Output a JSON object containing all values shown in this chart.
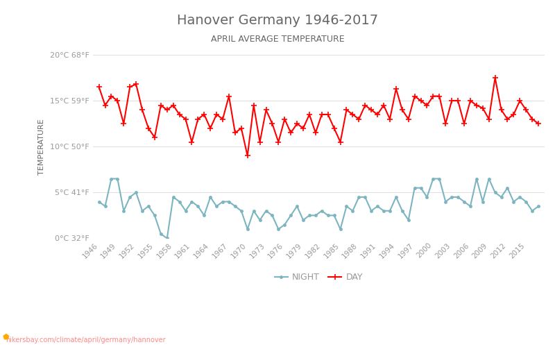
{
  "title": "Hanover Germany 1946-2017",
  "subtitle": "APRIL AVERAGE TEMPERATURE",
  "ylabel": "TEMPERATURE",
  "url": "hikersbay.com/climate/april/germany/hannover",
  "years": [
    1946,
    1947,
    1948,
    1949,
    1950,
    1951,
    1952,
    1953,
    1954,
    1955,
    1956,
    1957,
    1958,
    1959,
    1960,
    1961,
    1962,
    1963,
    1964,
    1965,
    1966,
    1967,
    1968,
    1969,
    1970,
    1971,
    1972,
    1973,
    1974,
    1975,
    1976,
    1977,
    1978,
    1979,
    1980,
    1981,
    1982,
    1983,
    1984,
    1985,
    1986,
    1987,
    1988,
    1989,
    1990,
    1991,
    1992,
    1993,
    1994,
    1995,
    1996,
    1997,
    1998,
    1999,
    2000,
    2001,
    2002,
    2003,
    2004,
    2005,
    2006,
    2007,
    2008,
    2009,
    2010,
    2011,
    2012,
    2013,
    2014,
    2015,
    2016,
    2017
  ],
  "day_temps": [
    16.5,
    14.5,
    15.5,
    15.0,
    12.5,
    16.5,
    16.8,
    14.0,
    12.0,
    11.0,
    14.5,
    14.0,
    14.5,
    13.5,
    13.0,
    10.5,
    13.0,
    13.5,
    12.0,
    13.5,
    13.0,
    15.5,
    11.5,
    12.0,
    9.0,
    14.5,
    10.5,
    14.0,
    12.5,
    10.5,
    13.0,
    11.5,
    12.5,
    12.0,
    13.5,
    11.5,
    13.5,
    13.5,
    12.0,
    10.5,
    14.0,
    13.5,
    13.0,
    14.5,
    14.0,
    13.5,
    14.5,
    13.0,
    16.3,
    14.0,
    13.0,
    15.5,
    15.0,
    14.5,
    15.5,
    15.5,
    12.5,
    15.0,
    15.0,
    12.5,
    15.0,
    14.5,
    14.2,
    13.0,
    17.5,
    14.0,
    13.0,
    13.5,
    15.0,
    14.0,
    13.0,
    12.5
  ],
  "night_temps": [
    4.0,
    3.5,
    6.5,
    6.5,
    3.0,
    4.5,
    5.0,
    3.0,
    3.5,
    2.5,
    0.5,
    0.0,
    4.5,
    4.0,
    3.0,
    4.0,
    3.5,
    2.5,
    4.5,
    3.5,
    4.0,
    4.0,
    3.5,
    3.0,
    1.0,
    3.0,
    2.0,
    3.0,
    2.5,
    1.0,
    1.5,
    2.5,
    3.5,
    2.0,
    2.5,
    2.5,
    3.0,
    2.5,
    2.5,
    1.0,
    3.5,
    3.0,
    4.5,
    4.5,
    3.0,
    3.5,
    3.0,
    3.0,
    4.5,
    3.0,
    2.0,
    5.5,
    5.5,
    4.5,
    6.5,
    6.5,
    4.0,
    4.5,
    4.5,
    4.0,
    3.5,
    6.5,
    4.0,
    6.5,
    5.0,
    4.5,
    5.5,
    4.0,
    4.5,
    4.0,
    3.0,
    3.5
  ],
  "day_color": "#ff0000",
  "night_color": "#7cb5c0",
  "title_color": "#666666",
  "subtitle_color": "#666666",
  "ylabel_color": "#666666",
  "tick_color": "#999999",
  "grid_color": "#e0e0e0",
  "background_color": "#ffffff",
  "ylim": [
    0,
    20
  ],
  "yticks_c": [
    0,
    5,
    10,
    15,
    20
  ],
  "ytick_labels": [
    "0°C 32°F",
    "5°C 41°F",
    "10°C 50°F",
    "15°C 59°F",
    "20°C 68°F"
  ],
  "xtick_years": [
    1946,
    1949,
    1952,
    1955,
    1958,
    1961,
    1964,
    1967,
    1970,
    1973,
    1976,
    1979,
    1982,
    1985,
    1988,
    1991,
    1994,
    1997,
    2000,
    2003,
    2006,
    2009,
    2012,
    2015
  ],
  "marker_size": 3.5,
  "line_width": 1.5,
  "legend_night_label": "NIGHT",
  "legend_day_label": "DAY"
}
